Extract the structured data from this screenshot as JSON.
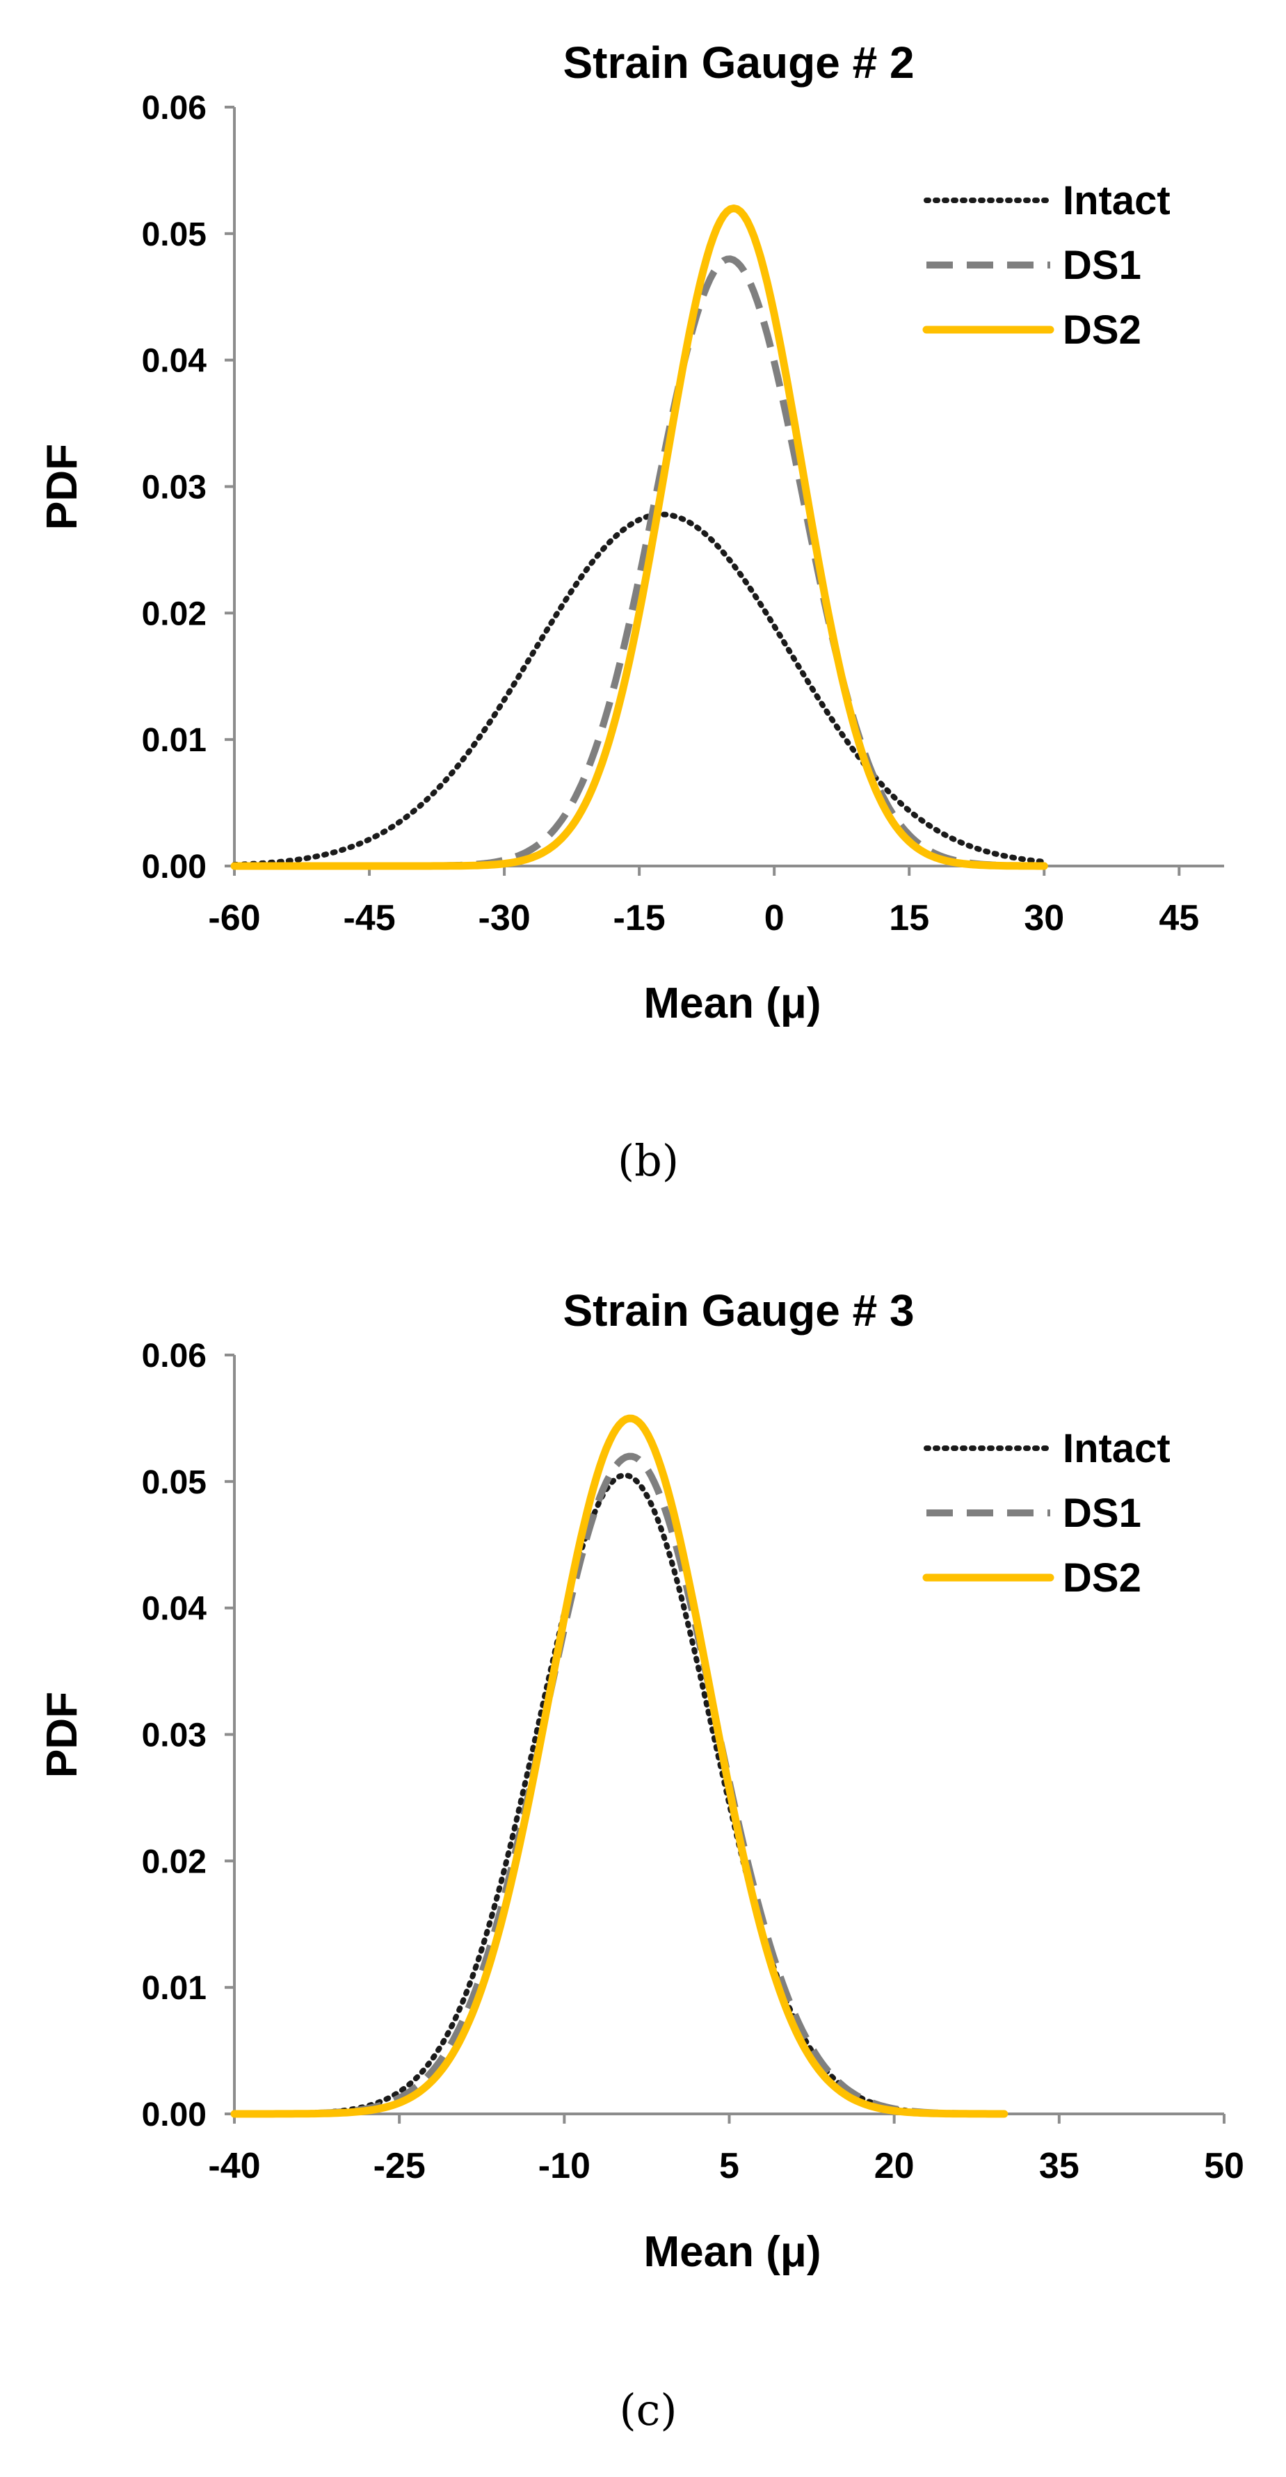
{
  "chart_data": [
    {
      "type": "line",
      "title": "Strain Gauge # 2",
      "xlabel": "Mean (μ)",
      "ylabel": "PDF",
      "caption": "(b)",
      "xlim": [
        -60,
        50
      ],
      "ylim": [
        0,
        0.06
      ],
      "x_ticks": [
        -60,
        -45,
        -30,
        -15,
        0,
        15,
        30,
        45
      ],
      "x_tick_labels": [
        "-60",
        "-45",
        "-30",
        "-15",
        "0",
        "15",
        "30",
        "45"
      ],
      "y_ticks": [
        0,
        0.01,
        0.02,
        0.03,
        0.04,
        0.05,
        0.06
      ],
      "y_tick_labels": [
        "0.00",
        "0.01",
        "0.02",
        "0.03",
        "0.04",
        "0.05",
        "0.06"
      ],
      "grid": false,
      "legend_position": "top-right",
      "series": [
        {
          "name": "Intact",
          "style": "dotted",
          "color": "#1a1a1a",
          "distribution": "normal",
          "mean": -12.5,
          "std": 14.3,
          "peak": 0.0278,
          "x_range": [
            -60,
            30
          ]
        },
        {
          "name": "DS1",
          "style": "dashed",
          "color": "#7f7f7f",
          "distribution": "normal",
          "mean": -5,
          "std": 8.2,
          "peak": 0.048,
          "x_range": [
            -60,
            30
          ]
        },
        {
          "name": "DS2",
          "style": "solid",
          "color": "#ffc000",
          "distribution": "normal",
          "mean": -4.5,
          "std": 7.6,
          "peak": 0.052,
          "x_range": [
            -60,
            30
          ]
        }
      ]
    },
    {
      "type": "line",
      "title": "Strain Gauge # 3",
      "xlabel": "Mean (μ)",
      "ylabel": "PDF",
      "caption": "(c)",
      "xlim": [
        -40,
        50
      ],
      "ylim": [
        0,
        0.06
      ],
      "x_ticks": [
        -40,
        -25,
        -10,
        5,
        20,
        35,
        50
      ],
      "x_tick_labels": [
        "-40",
        "-25",
        "-10",
        "5",
        "20",
        "35",
        "50"
      ],
      "y_ticks": [
        0,
        0.01,
        0.02,
        0.03,
        0.04,
        0.05,
        0.06
      ],
      "y_tick_labels": [
        "0.00",
        "0.01",
        "0.02",
        "0.03",
        "0.04",
        "0.05",
        "0.06"
      ],
      "grid": false,
      "legend_position": "top-right",
      "series": [
        {
          "name": "Intact",
          "style": "dotted",
          "color": "#1a1a1a",
          "distribution": "normal",
          "mean": -4.5,
          "std": 7.9,
          "peak": 0.0505,
          "x_range": [
            -40,
            30
          ]
        },
        {
          "name": "DS1",
          "style": "dashed",
          "color": "#7f7f7f",
          "distribution": "normal",
          "mean": -4,
          "std": 7.7,
          "peak": 0.052,
          "x_range": [
            -40,
            30
          ]
        },
        {
          "name": "DS2",
          "style": "solid",
          "color": "#ffc000",
          "distribution": "normal",
          "mean": -4,
          "std": 7.3,
          "peak": 0.055,
          "x_range": [
            -40,
            30
          ]
        }
      ]
    }
  ]
}
